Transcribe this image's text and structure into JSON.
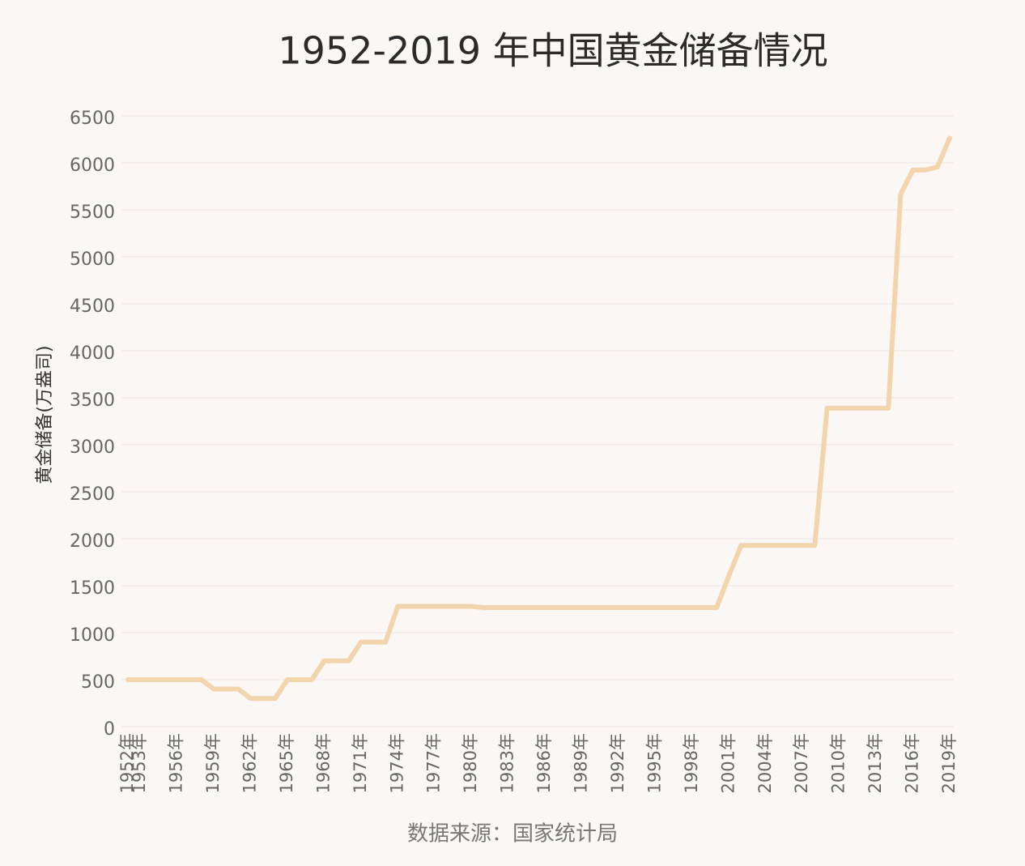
{
  "chart_data": {
    "type": "line",
    "title": "1952-2019 年中国黄金储备情况",
    "y_label": "黄金储备(万盎司)",
    "source": "数据来源：国家统计局",
    "categories": [
      "1952年",
      "1953年",
      null,
      null,
      "1956年",
      null,
      null,
      "1959年",
      null,
      null,
      "1962年",
      null,
      null,
      "1965年",
      null,
      null,
      "1968年",
      null,
      null,
      "1971年",
      null,
      null,
      "1974年",
      null,
      null,
      "1977年",
      null,
      null,
      "1980年",
      null,
      null,
      "1983年",
      null,
      null,
      "1986年",
      null,
      null,
      "1989年",
      null,
      null,
      "1992年",
      null,
      null,
      "1995年",
      null,
      null,
      "1998年",
      null,
      null,
      "2001年",
      null,
      null,
      "2004年",
      null,
      null,
      "2007年",
      null,
      null,
      "2010年",
      null,
      null,
      "2013年",
      null,
      null,
      "2016年",
      null,
      null,
      "2019年"
    ],
    "series": [
      {
        "name": "黄金储备",
        "color": "#f2d5ad",
        "values": [
          500,
          500,
          500,
          500,
          500,
          500,
          500,
          400,
          400,
          400,
          300,
          300,
          300,
          500,
          500,
          500,
          700,
          700,
          700,
          900,
          900,
          900,
          1280,
          1280,
          1280,
          1280,
          1280,
          1280,
          1280,
          1267,
          1267,
          1267,
          1267,
          1267,
          1267,
          1267,
          1267,
          1267,
          1267,
          1267,
          1267,
          1267,
          1267,
          1267,
          1267,
          1267,
          1267,
          1267,
          1267,
          1608,
          1929,
          1929,
          1929,
          1929,
          1929,
          1929,
          1929,
          3389,
          3389,
          3389,
          3389,
          3389,
          3389,
          5666,
          5924,
          5924,
          5956,
          6264
        ]
      }
    ],
    "ylim": [
      0,
      6500
    ],
    "yticks": [
      0,
      500,
      1000,
      1500,
      2000,
      2500,
      3000,
      3500,
      4000,
      4500,
      5000,
      5500,
      6000,
      6500
    ],
    "grid": true
  }
}
